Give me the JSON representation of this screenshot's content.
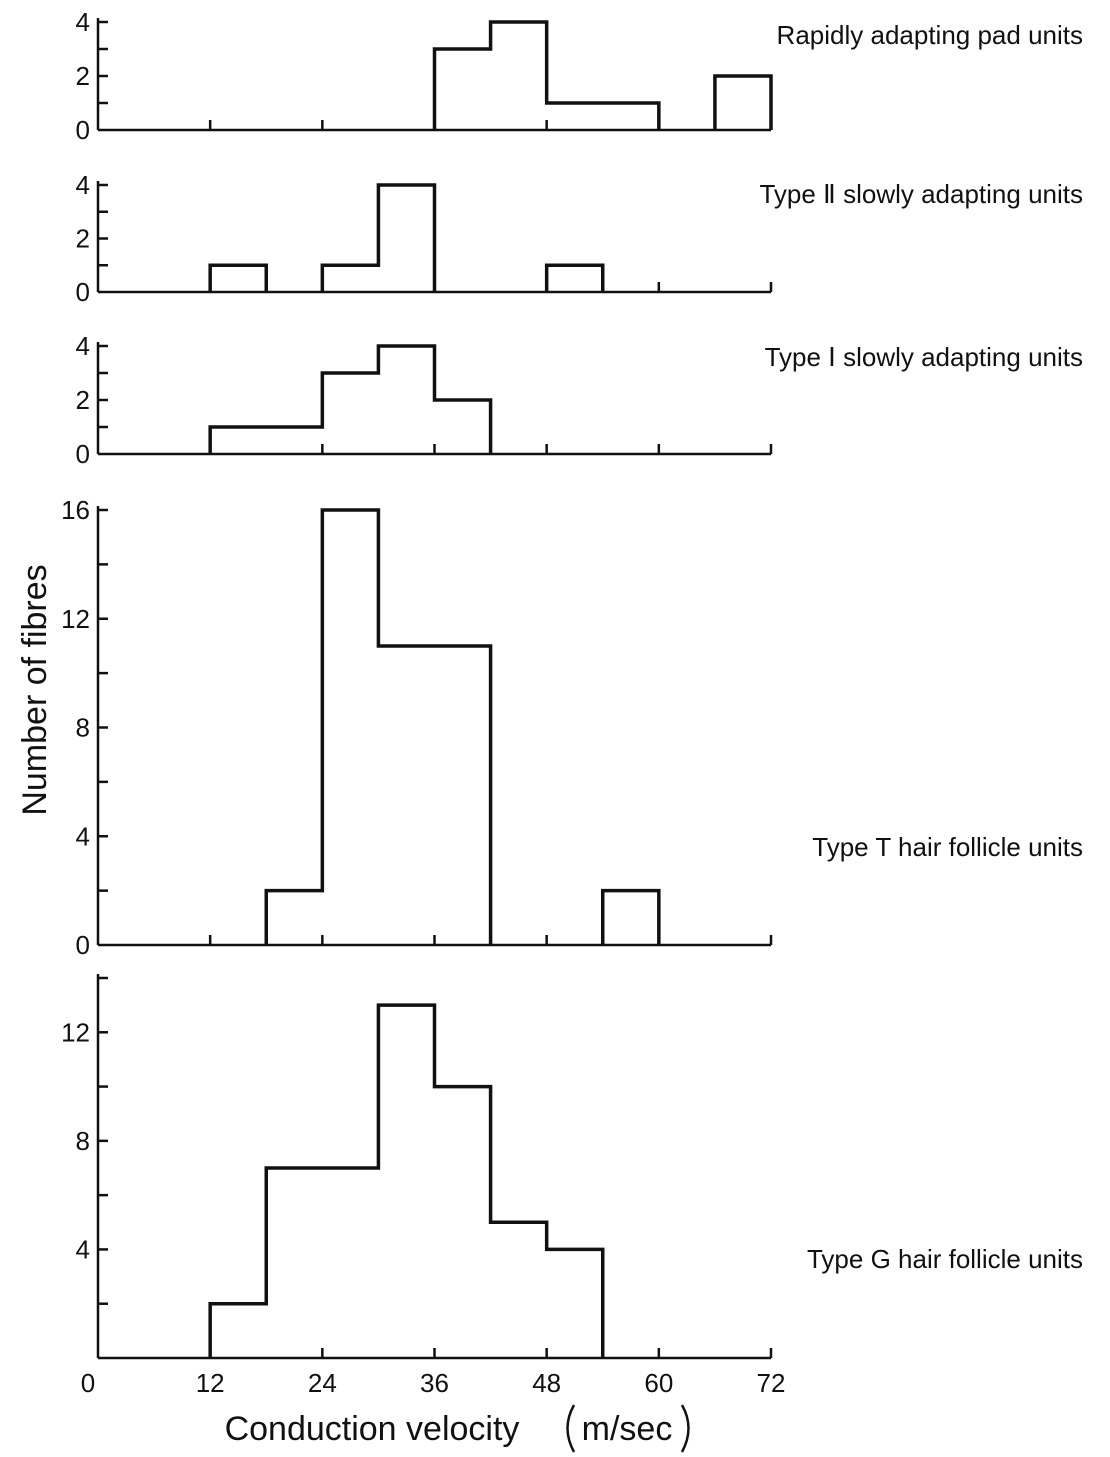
{
  "chart_data": [
    {
      "type": "bar",
      "subtype": "histogram",
      "label": "Rapidly adapting pad units",
      "bin_edges": [
        36,
        42,
        48,
        60,
        66,
        72
      ],
      "counts": [
        3,
        4,
        1,
        0,
        2
      ],
      "ylim": [
        0,
        4
      ],
      "yticks": [
        0,
        2,
        4
      ],
      "xlim": [
        0,
        72
      ]
    },
    {
      "type": "bar",
      "subtype": "histogram",
      "label": "Type Ⅱ slowly adapting units",
      "bin_edges": [
        12,
        18,
        24,
        30,
        36,
        48,
        54
      ],
      "counts": [
        1,
        0,
        1,
        4,
        0,
        1
      ],
      "ylim": [
        0,
        4
      ],
      "yticks": [
        0,
        2,
        4
      ],
      "xlim": [
        0,
        72
      ]
    },
    {
      "type": "bar",
      "subtype": "histogram",
      "label": "Type Ⅰ slowly adapting units",
      "bin_edges": [
        12,
        24,
        30,
        36,
        42
      ],
      "counts": [
        1,
        3,
        4,
        2
      ],
      "ylim": [
        0,
        4
      ],
      "yticks": [
        0,
        2,
        4
      ],
      "xlim": [
        0,
        72
      ]
    },
    {
      "type": "bar",
      "subtype": "histogram",
      "label": "Type T hair follicle units",
      "bin_edges": [
        18,
        24,
        30,
        42,
        54,
        60
      ],
      "counts": [
        2,
        16,
        11,
        0,
        2
      ],
      "ylim": [
        0,
        16
      ],
      "yticks": [
        0,
        4,
        8,
        12,
        16
      ],
      "xlim": [
        0,
        72
      ]
    },
    {
      "type": "bar",
      "subtype": "histogram",
      "label": "Type G hair follicle units",
      "bin_edges": [
        12,
        18,
        30,
        36,
        42,
        48,
        54
      ],
      "counts": [
        2,
        7,
        13,
        10,
        5,
        4
      ],
      "ylim": [
        0,
        14
      ],
      "yticks": [
        4,
        8,
        12
      ],
      "xlim": [
        0,
        72
      ],
      "xticks": [
        0,
        12,
        24,
        36,
        48,
        60,
        72
      ]
    }
  ],
  "xlabel_left": "Conduction  velocity",
  "xlabel_unit": "m/sec",
  "ylabel": "Number  of  fibres"
}
